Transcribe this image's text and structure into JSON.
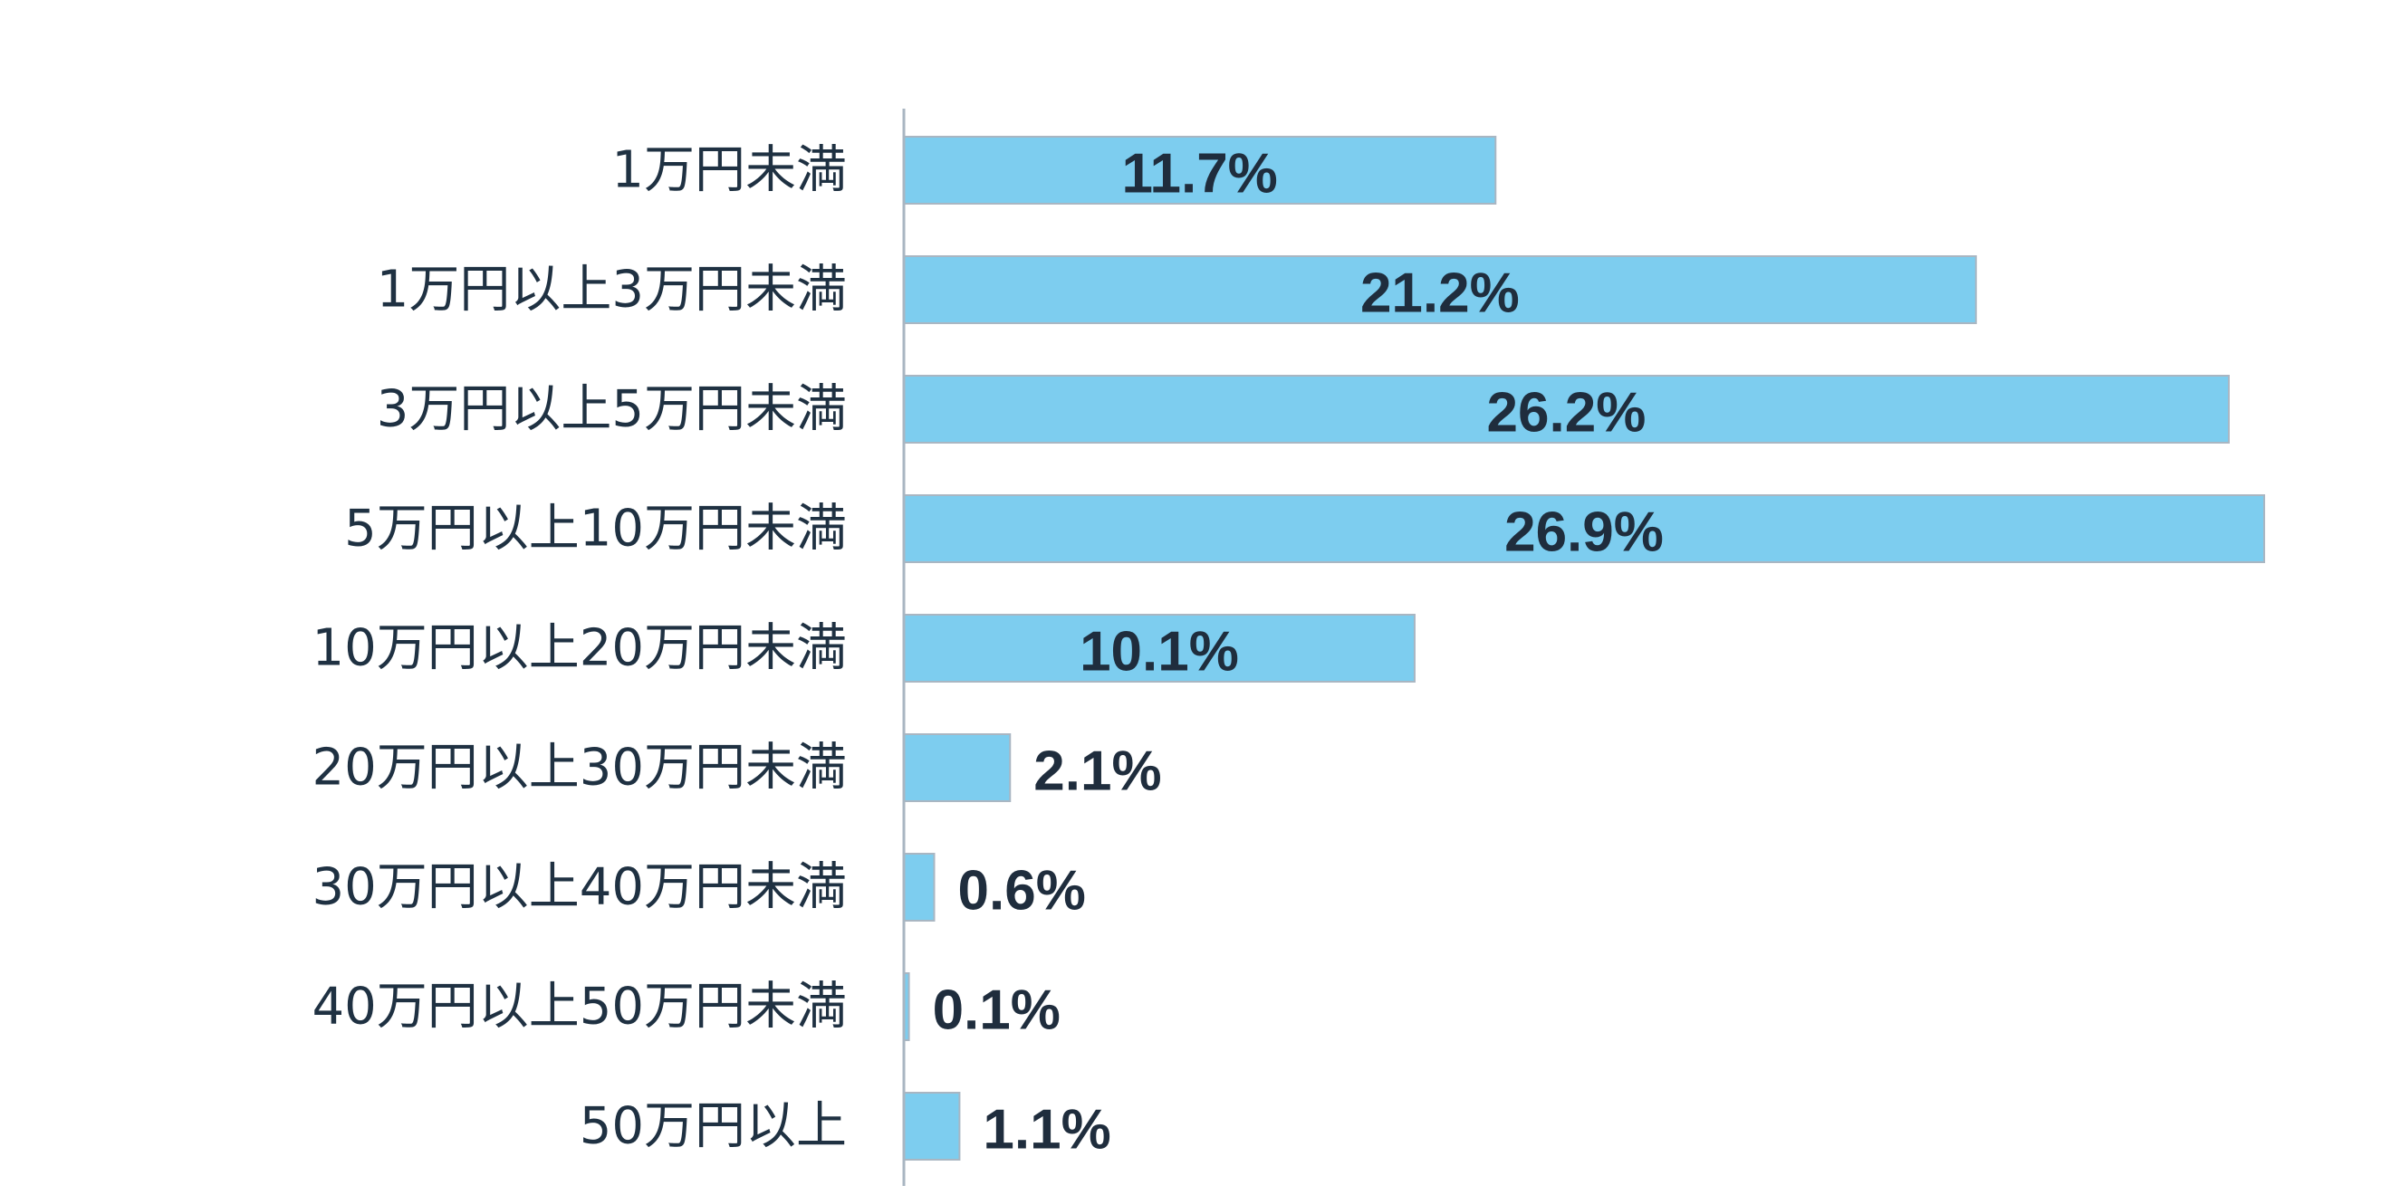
{
  "chart_data": {
    "type": "bar",
    "orientation": "horizontal",
    "title": "",
    "xlabel": "",
    "ylabel": "",
    "categories": [
      "1万円未満",
      "1万円以上3万円未満",
      "3万円以上5万円未満",
      "5万円以上10万円未満",
      "10万円以上20万円未満",
      "20万円以上30万円未満",
      "30万円以上40万円未満",
      "40万円以上50万円未満",
      "50万円以上"
    ],
    "values": [
      11.7,
      21.2,
      26.2,
      26.9,
      10.1,
      2.1,
      0.6,
      0.1,
      1.1
    ],
    "value_labels": [
      "11.7%",
      "21.2%",
      "26.2%",
      "26.9%",
      "10.1%",
      "2.1%",
      "0.6%",
      "0.1%",
      "1.1%"
    ],
    "unit": "%",
    "xlim": [
      0,
      26.9
    ],
    "grid": false,
    "legend": "none",
    "colors": {
      "bar": "#7dcdef",
      "bar_edge": "#a9b6c2",
      "axis": "#a9b6c2",
      "text": "#1f3142"
    }
  }
}
